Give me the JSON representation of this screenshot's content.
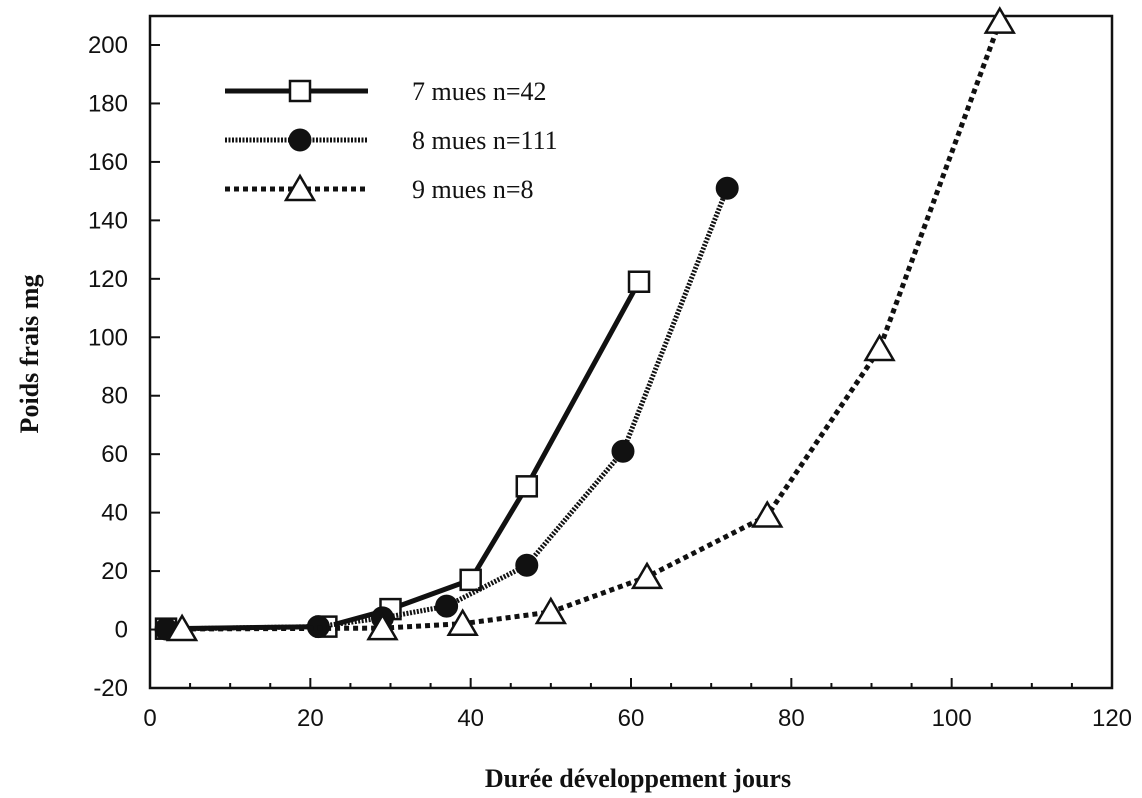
{
  "chart_data": {
    "type": "line",
    "title": "",
    "xlabel": "Durée développement jours",
    "ylabel": "Poids frais mg",
    "xlim": [
      0,
      120
    ],
    "ylim": [
      -20,
      200
    ],
    "xticks": [
      0,
      20,
      40,
      60,
      80,
      100,
      120
    ],
    "yticks": [
      -20,
      0,
      20,
      40,
      60,
      80,
      100,
      120,
      140,
      160,
      180,
      200
    ],
    "grid": false,
    "legend_position": "top-left",
    "series": [
      {
        "name": "7 mues n=42",
        "marker": "open-square",
        "line_style": "solid",
        "points": [
          [
            2,
            0.3
          ],
          [
            22,
            1
          ],
          [
            30,
            7
          ],
          [
            40,
            17
          ],
          [
            47,
            49
          ],
          [
            61,
            119
          ]
        ]
      },
      {
        "name": "8 mues n=111",
        "marker": "filled-circle",
        "line_style": "dense-dotted",
        "points": [
          [
            2,
            0.2
          ],
          [
            21,
            1
          ],
          [
            29,
            4
          ],
          [
            37,
            8
          ],
          [
            47,
            22
          ],
          [
            59,
            61
          ],
          [
            72,
            151
          ]
        ]
      },
      {
        "name": "9 mues n=8",
        "marker": "open-triangle",
        "line_style": "dotted",
        "points": [
          [
            4,
            0.2
          ],
          [
            29,
            0.5
          ],
          [
            39,
            2
          ],
          [
            50,
            6
          ],
          [
            62,
            18
          ],
          [
            77,
            39
          ],
          [
            91,
            96
          ],
          [
            106,
            208
          ]
        ]
      }
    ]
  }
}
